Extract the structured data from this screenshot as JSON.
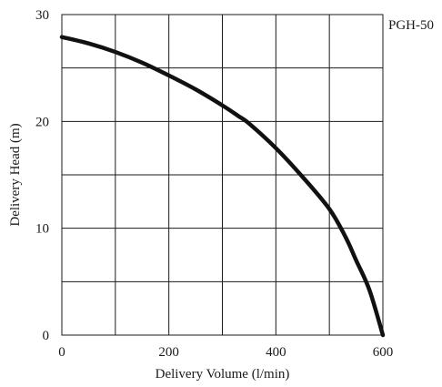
{
  "chart_data": {
    "type": "line",
    "title": "PGH-50",
    "xlabel": "Delivery Volume (l/min)",
    "ylabel": "Delivery Head (m)",
    "xlim": [
      0,
      600
    ],
    "ylim": [
      0,
      30
    ],
    "x_ticks": [
      0,
      200,
      400,
      600
    ],
    "y_ticks": [
      0,
      10,
      20,
      30
    ],
    "x_grid_step": 100,
    "y_grid_step": 5,
    "grid": true,
    "series": [
      {
        "name": "",
        "x": [
          0,
          50,
          100,
          150,
          200,
          250,
          300,
          330,
          350,
          400,
          450,
          500,
          530,
          550,
          575,
          600
        ],
        "y": [
          27.9,
          27.3,
          26.5,
          25.5,
          24.3,
          23.0,
          21.5,
          20.5,
          19.8,
          17.5,
          14.8,
          11.8,
          9.2,
          7.0,
          4.2,
          0.0
        ]
      }
    ]
  }
}
